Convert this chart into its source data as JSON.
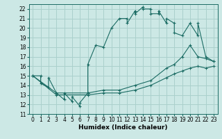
{
  "xlabel": "Humidex (Indice chaleur)",
  "xlim": [
    -0.5,
    23.5
  ],
  "ylim": [
    11,
    22.5
  ],
  "yticks": [
    11,
    12,
    13,
    14,
    15,
    16,
    17,
    18,
    19,
    20,
    21,
    22
  ],
  "xticks": [
    0,
    1,
    2,
    3,
    4,
    5,
    6,
    7,
    8,
    9,
    10,
    11,
    12,
    13,
    14,
    15,
    16,
    17,
    18,
    19,
    20,
    21,
    22,
    23
  ],
  "bg_color": "#cce8e5",
  "grid_color": "#aad0cc",
  "line_color": "#1a6b63",
  "lines": [
    {
      "x": [
        0,
        1,
        1,
        2,
        2,
        3,
        4,
        4,
        5,
        5,
        6,
        6,
        7,
        7,
        8,
        9,
        10,
        11,
        12,
        12,
        13,
        13,
        14,
        14,
        15,
        15,
        16,
        16,
        17,
        17,
        18,
        18,
        19,
        20,
        21,
        21,
        22,
        23
      ],
      "y": [
        15.0,
        15.0,
        14.2,
        13.8,
        14.8,
        13.2,
        12.5,
        13.2,
        12.3,
        12.8,
        11.8,
        12.2,
        13.2,
        16.2,
        18.2,
        18.0,
        20.0,
        21.0,
        21.0,
        20.5,
        21.8,
        21.5,
        22.2,
        22.0,
        22.0,
        21.5,
        21.5,
        21.8,
        20.5,
        21.0,
        20.5,
        19.5,
        19.2,
        20.5,
        19.2,
        20.5,
        17.0,
        16.5
      ]
    },
    {
      "x": [
        0,
        3,
        7,
        9,
        11,
        13,
        15,
        17,
        18,
        19,
        20,
        21,
        22,
        23
      ],
      "y": [
        15.0,
        13.2,
        13.2,
        13.5,
        13.5,
        14.0,
        14.5,
        15.8,
        16.2,
        17.0,
        18.2,
        17.0,
        16.8,
        16.5
      ]
    },
    {
      "x": [
        0,
        3,
        7,
        9,
        11,
        13,
        15,
        17,
        18,
        19,
        20,
        21,
        22,
        23
      ],
      "y": [
        15.0,
        13.0,
        13.0,
        13.2,
        13.2,
        13.5,
        14.0,
        14.8,
        15.2,
        15.5,
        15.8,
        16.0,
        15.8,
        16.0
      ]
    }
  ],
  "font_size_label": 6.5,
  "font_size_tick": 5.5,
  "marker": "+"
}
